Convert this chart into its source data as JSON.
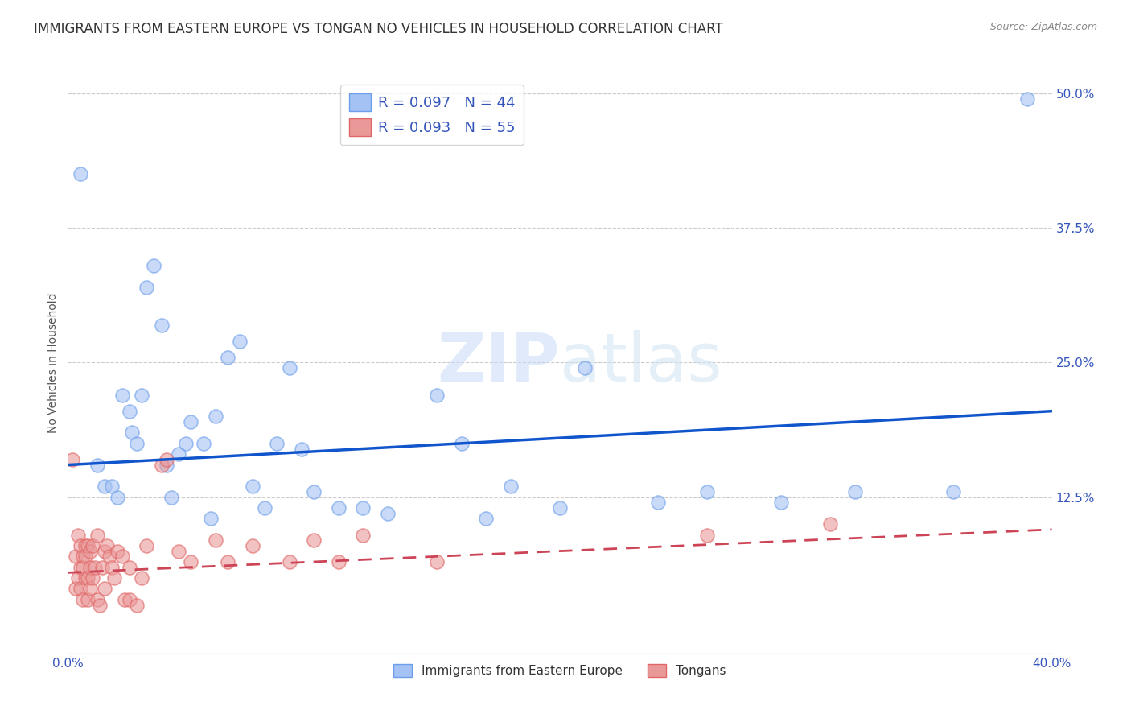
{
  "title": "IMMIGRANTS FROM EASTERN EUROPE VS TONGAN NO VEHICLES IN HOUSEHOLD CORRELATION CHART",
  "source": "Source: ZipAtlas.com",
  "ylabel": "No Vehicles in Household",
  "xlim": [
    0.0,
    0.4
  ],
  "ylim": [
    -0.02,
    0.52
  ],
  "xticks": [
    0.0,
    0.1,
    0.2,
    0.3,
    0.4
  ],
  "xtick_labels": [
    "0.0%",
    "",
    "",
    "",
    "40.0%"
  ],
  "yticks": [
    0.0,
    0.125,
    0.25,
    0.375,
    0.5
  ],
  "ytick_labels": [
    "",
    "12.5%",
    "25.0%",
    "37.5%",
    "50.0%"
  ],
  "blue_label": "Immigrants from Eastern Europe",
  "pink_label": "Tongans",
  "blue_R": "0.097",
  "blue_N": "44",
  "pink_R": "0.093",
  "pink_N": "55",
  "blue_color": "#a4c2f4",
  "pink_color": "#ea9999",
  "blue_edge_color": "#6d9eeb",
  "pink_edge_color": "#e06666",
  "blue_line_color": "#1155cc",
  "pink_line_color": "#cc4455",
  "blue_scatter": [
    [
      0.005,
      0.425
    ],
    [
      0.012,
      0.155
    ],
    [
      0.015,
      0.135
    ],
    [
      0.018,
      0.135
    ],
    [
      0.02,
      0.125
    ],
    [
      0.022,
      0.22
    ],
    [
      0.025,
      0.205
    ],
    [
      0.026,
      0.185
    ],
    [
      0.028,
      0.175
    ],
    [
      0.03,
      0.22
    ],
    [
      0.032,
      0.32
    ],
    [
      0.035,
      0.34
    ],
    [
      0.038,
      0.285
    ],
    [
      0.04,
      0.155
    ],
    [
      0.042,
      0.125
    ],
    [
      0.045,
      0.165
    ],
    [
      0.048,
      0.175
    ],
    [
      0.05,
      0.195
    ],
    [
      0.055,
      0.175
    ],
    [
      0.058,
      0.105
    ],
    [
      0.06,
      0.2
    ],
    [
      0.065,
      0.255
    ],
    [
      0.07,
      0.27
    ],
    [
      0.075,
      0.135
    ],
    [
      0.08,
      0.115
    ],
    [
      0.085,
      0.175
    ],
    [
      0.09,
      0.245
    ],
    [
      0.095,
      0.17
    ],
    [
      0.1,
      0.13
    ],
    [
      0.11,
      0.115
    ],
    [
      0.12,
      0.115
    ],
    [
      0.13,
      0.11
    ],
    [
      0.15,
      0.22
    ],
    [
      0.16,
      0.175
    ],
    [
      0.17,
      0.105
    ],
    [
      0.18,
      0.135
    ],
    [
      0.2,
      0.115
    ],
    [
      0.21,
      0.245
    ],
    [
      0.24,
      0.12
    ],
    [
      0.26,
      0.13
    ],
    [
      0.29,
      0.12
    ],
    [
      0.32,
      0.13
    ],
    [
      0.36,
      0.13
    ],
    [
      0.39,
      0.495
    ]
  ],
  "pink_scatter": [
    [
      0.002,
      0.16
    ],
    [
      0.003,
      0.07
    ],
    [
      0.003,
      0.04
    ],
    [
      0.004,
      0.09
    ],
    [
      0.004,
      0.05
    ],
    [
      0.005,
      0.08
    ],
    [
      0.005,
      0.06
    ],
    [
      0.005,
      0.04
    ],
    [
      0.006,
      0.07
    ],
    [
      0.006,
      0.03
    ],
    [
      0.006,
      0.06
    ],
    [
      0.007,
      0.05
    ],
    [
      0.007,
      0.08
    ],
    [
      0.007,
      0.07
    ],
    [
      0.008,
      0.03
    ],
    [
      0.008,
      0.08
    ],
    [
      0.008,
      0.05
    ],
    [
      0.009,
      0.06
    ],
    [
      0.009,
      0.075
    ],
    [
      0.009,
      0.04
    ],
    [
      0.01,
      0.05
    ],
    [
      0.01,
      0.08
    ],
    [
      0.011,
      0.06
    ],
    [
      0.012,
      0.09
    ],
    [
      0.012,
      0.03
    ],
    [
      0.013,
      0.025
    ],
    [
      0.014,
      0.06
    ],
    [
      0.015,
      0.075
    ],
    [
      0.015,
      0.04
    ],
    [
      0.016,
      0.08
    ],
    [
      0.017,
      0.07
    ],
    [
      0.018,
      0.06
    ],
    [
      0.019,
      0.05
    ],
    [
      0.02,
      0.075
    ],
    [
      0.022,
      0.07
    ],
    [
      0.023,
      0.03
    ],
    [
      0.025,
      0.06
    ],
    [
      0.025,
      0.03
    ],
    [
      0.028,
      0.025
    ],
    [
      0.03,
      0.05
    ],
    [
      0.032,
      0.08
    ],
    [
      0.038,
      0.155
    ],
    [
      0.04,
      0.16
    ],
    [
      0.045,
      0.075
    ],
    [
      0.05,
      0.065
    ],
    [
      0.06,
      0.085
    ],
    [
      0.065,
      0.065
    ],
    [
      0.075,
      0.08
    ],
    [
      0.09,
      0.065
    ],
    [
      0.1,
      0.085
    ],
    [
      0.11,
      0.065
    ],
    [
      0.12,
      0.09
    ],
    [
      0.15,
      0.065
    ],
    [
      0.26,
      0.09
    ],
    [
      0.31,
      0.1
    ]
  ],
  "background_color": "#ffffff",
  "grid_color": "#cccccc",
  "title_fontsize": 12,
  "label_fontsize": 10,
  "tick_fontsize": 11
}
